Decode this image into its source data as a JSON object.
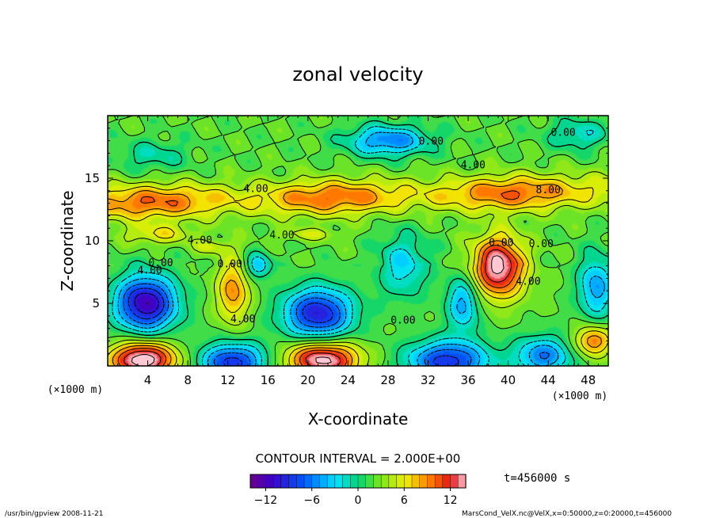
{
  "chart_data": {
    "type": "heatmap",
    "title": "zonal velocity",
    "xlabel": "X-coordinate",
    "ylabel": "Z-coordinate",
    "x_unit": "(×1000 m)",
    "y_unit": "(×1000 m)",
    "xlim": [
      0,
      50
    ],
    "ylim": [
      0,
      20
    ],
    "x_ticks": [
      "4",
      "8",
      "12",
      "16",
      "20",
      "24",
      "28",
      "32",
      "36",
      "40",
      "44",
      "48"
    ],
    "x_tick_values": [
      4,
      8,
      12,
      16,
      20,
      24,
      28,
      32,
      36,
      40,
      44,
      48
    ],
    "y_ticks": [
      "5",
      "10",
      "15"
    ],
    "y_tick_values": [
      5,
      10,
      15
    ],
    "contour_labels": [
      {
        "text": "0.00",
        "x": 32.3,
        "z": 18.0
      },
      {
        "text": "0.00",
        "x": 45.5,
        "z": 18.7
      },
      {
        "text": "4.00",
        "x": 36.5,
        "z": 16.1
      },
      {
        "text": "4.00",
        "x": 14.8,
        "z": 14.2
      },
      {
        "text": "8.00",
        "x": 44.0,
        "z": 14.1
      },
      {
        "text": "4.00",
        "x": 17.4,
        "z": 10.5
      },
      {
        "text": "4.00",
        "x": 9.2,
        "z": 10.1
      },
      {
        "text": "0.00",
        "x": 39.3,
        "z": 9.9
      },
      {
        "text": "0.00",
        "x": 43.3,
        "z": 9.8
      },
      {
        "text": "0.00",
        "x": 5.3,
        "z": 8.3
      },
      {
        "text": "4.00",
        "x": 4.2,
        "z": 7.7
      },
      {
        "text": "0.00",
        "x": 12.2,
        "z": 8.2
      },
      {
        "text": "4.00",
        "x": 13.5,
        "z": 3.8
      },
      {
        "text": "0.00",
        "x": 29.5,
        "z": 3.7
      },
      {
        "text": "4.00",
        "x": 42.0,
        "z": 6.8
      }
    ],
    "features": [
      {
        "x": 3.8,
        "z": 5.0,
        "amp": -14,
        "rx": 3.0,
        "rz": 2.2
      },
      {
        "x": 21.0,
        "z": 4.2,
        "amp": -12,
        "rx": 3.4,
        "rz": 2.0
      },
      {
        "x": 12.5,
        "z": 0.3,
        "amp": -11,
        "rx": 3.2,
        "rz": 1.5
      },
      {
        "x": 34.0,
        "z": 0.4,
        "amp": -11,
        "rx": 4.0,
        "rz": 1.6
      },
      {
        "x": 43.5,
        "z": 0.8,
        "amp": -8,
        "rx": 2.8,
        "rz": 1.5
      },
      {
        "x": 29.5,
        "z": 8.0,
        "amp": -5,
        "rx": 2.5,
        "rz": 2.5
      },
      {
        "x": 48.8,
        "z": 6.3,
        "amp": -7,
        "rx": 1.8,
        "rz": 2.5
      },
      {
        "x": 35.5,
        "z": 5.0,
        "amp": -7,
        "rx": 1.6,
        "rz": 2.2
      },
      {
        "x": 28.0,
        "z": 18.0,
        "amp": -8,
        "rx": 4.0,
        "rz": 1.2
      },
      {
        "x": 47.0,
        "z": 18.5,
        "amp": -4,
        "rx": 3.0,
        "rz": 1.2
      },
      {
        "x": 15.0,
        "z": 8.0,
        "amp": -6,
        "rx": 1.3,
        "rz": 1.0
      },
      {
        "x": 4.5,
        "z": 16.8,
        "amp": -3,
        "rx": 3.5,
        "rz": 1.2
      },
      {
        "x": 39.0,
        "z": 7.9,
        "amp": 13,
        "rx": 2.6,
        "rz": 2.4
      },
      {
        "x": 3.5,
        "z": 0.5,
        "amp": 14,
        "rx": 3.2,
        "rz": 1.4
      },
      {
        "x": 21.5,
        "z": 0.5,
        "amp": 13,
        "rx": 3.5,
        "rz": 1.4
      },
      {
        "x": 48.5,
        "z": 2.0,
        "amp": 8,
        "rx": 1.8,
        "rz": 1.2
      },
      {
        "x": 12.5,
        "z": 6.0,
        "amp": 7,
        "rx": 1.6,
        "rz": 2.5
      },
      {
        "x": 5.0,
        "z": 10.5,
        "amp": 4,
        "rx": 3.5,
        "rz": 0.8
      },
      {
        "x": 10.5,
        "z": 9.5,
        "amp": 3,
        "rx": 2.0,
        "rz": 0.6
      },
      {
        "x": 20.0,
        "z": 10.5,
        "amp": 3,
        "rx": 3.0,
        "rz": 0.5
      }
    ],
    "jet": {
      "x0": 0,
      "z0": 13.0,
      "x1": 50,
      "z1": 14.0,
      "amp": 8,
      "width": 1.4
    },
    "colorbar": {
      "min": -14,
      "max": 14,
      "ticks": [
        "−12",
        "−6",
        "0",
        "6",
        "12"
      ],
      "tick_values": [
        -12,
        -6,
        0,
        6,
        12
      ]
    }
  },
  "contour_interval": "CONTOUR INTERVAL = 2.000E+00",
  "time_label": "t=456000 s",
  "footer_left": "/usr/bin/gpview   2008-11-21",
  "footer_right": "MarsCond_VelX.nc@VelX,x=0:50000,z=0:20000,t=456000"
}
